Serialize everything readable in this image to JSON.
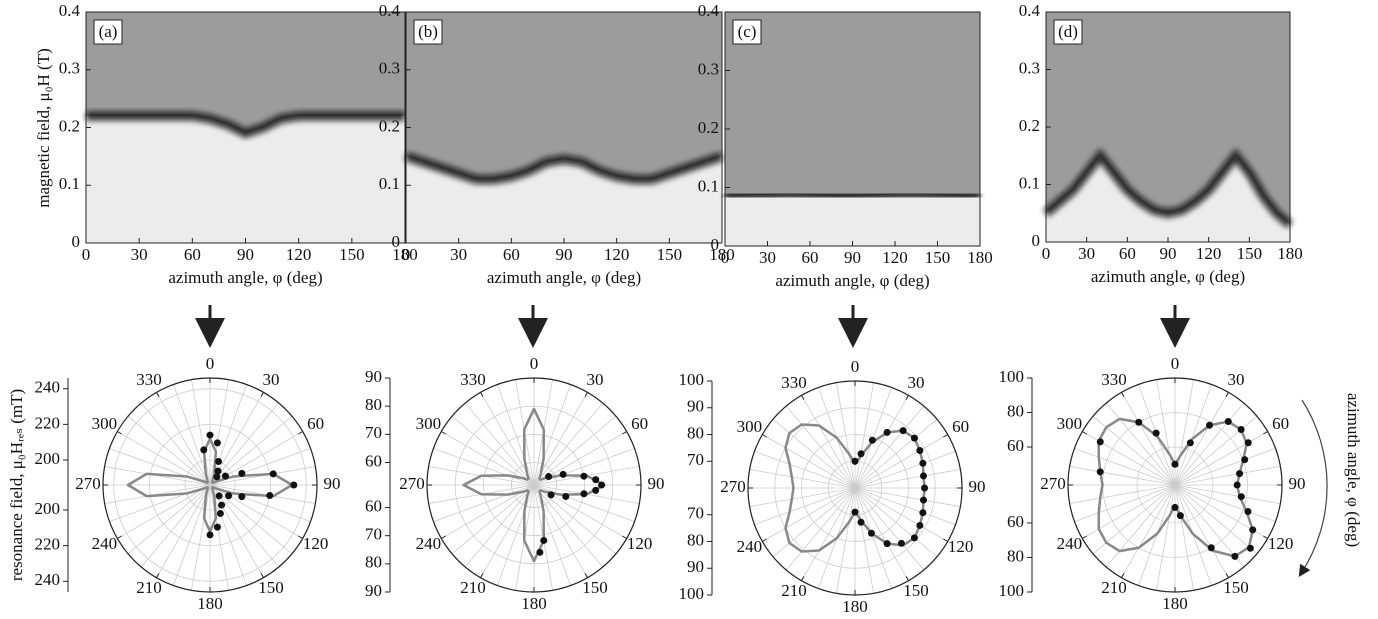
{
  "chart_data": [
    {
      "type": "heatmap",
      "label": "(a)",
      "xlabel": "azimuth angle, φ (deg)",
      "ylabel": "magnetic field, μ₀H (T)",
      "x": [
        0,
        10,
        20,
        30,
        40,
        50,
        60,
        70,
        80,
        90,
        100,
        110,
        120,
        130,
        140,
        150,
        160,
        170,
        180
      ],
      "values": [
        0.22,
        0.22,
        0.22,
        0.22,
        0.22,
        0.22,
        0.22,
        0.215,
        0.205,
        0.19,
        0.2,
        0.215,
        0.22,
        0.22,
        0.22,
        0.22,
        0.22,
        0.22,
        0.22
      ],
      "color": "#111111",
      "xlim": [
        0,
        180
      ],
      "xticks": [
        0,
        30,
        60,
        90,
        120,
        150,
        180
      ],
      "ylim": [
        0,
        0.4
      ],
      "yticks": [
        0,
        0.1,
        0.2,
        0.3,
        0.4
      ]
    },
    {
      "type": "heatmap",
      "label": "(b)",
      "xlabel": "azimuth angle, φ (deg)",
      "x": [
        0,
        10,
        20,
        30,
        40,
        50,
        60,
        70,
        80,
        90,
        100,
        110,
        120,
        130,
        140,
        150,
        160,
        170,
        180
      ],
      "values": [
        0.15,
        0.14,
        0.13,
        0.12,
        0.11,
        0.11,
        0.115,
        0.125,
        0.14,
        0.145,
        0.14,
        0.125,
        0.115,
        0.11,
        0.11,
        0.12,
        0.13,
        0.14,
        0.15
      ],
      "color": "#111111",
      "xlim": [
        0,
        180
      ],
      "xticks": [
        0,
        30,
        60,
        90,
        120,
        150,
        180
      ],
      "ylim": [
        0,
        0.4
      ],
      "yticks": [
        0,
        0.1,
        0.2,
        0.3,
        0.4
      ]
    },
    {
      "type": "heatmap",
      "label": "(c)",
      "xlabel": "azimuth angle, φ (deg)",
      "x": [
        0,
        10,
        20,
        30,
        40,
        50,
        60,
        70,
        80,
        90,
        100,
        110,
        120,
        130,
        140,
        150,
        160,
        170,
        180
      ],
      "values": [
        0.085,
        0.086,
        0.087,
        0.087,
        0.088,
        0.088,
        0.087,
        0.086,
        0.085,
        0.085,
        0.086,
        0.087,
        0.088,
        0.088,
        0.088,
        0.087,
        0.086,
        0.085,
        0.085
      ],
      "color": "#111111",
      "xlim": [
        0,
        180
      ],
      "xticks": [
        0,
        30,
        60,
        90,
        120,
        150,
        180
      ],
      "ylim": [
        0,
        0.4
      ],
      "yticks": [
        0,
        0.1,
        0.2,
        0.3,
        0.4
      ]
    },
    {
      "type": "heatmap",
      "label": "(d)",
      "xlabel": "azimuth angle, φ (deg)",
      "x": [
        0,
        10,
        20,
        30,
        40,
        50,
        60,
        70,
        80,
        90,
        100,
        110,
        120,
        130,
        140,
        150,
        160,
        170,
        180
      ],
      "values": [
        0.05,
        0.07,
        0.09,
        0.12,
        0.15,
        0.12,
        0.09,
        0.07,
        0.055,
        0.05,
        0.055,
        0.07,
        0.09,
        0.12,
        0.15,
        0.12,
        0.08,
        0.05,
        0.03
      ],
      "color": "#111111",
      "xlim": [
        0,
        180
      ],
      "xticks": [
        0,
        30,
        60,
        90,
        120,
        150,
        180
      ],
      "ylim": [
        0,
        0.4
      ],
      "yticks": [
        0,
        0.1,
        0.2,
        0.3,
        0.4
      ]
    },
    {
      "type": "polar",
      "ylabel": "resonance field, μ₀Hᵣₑₛ (mT)",
      "rlim": [
        186,
        246
      ],
      "rticks": [
        200,
        220,
        240
      ],
      "thetaticks": [
        0,
        30,
        60,
        90,
        120,
        150,
        180,
        210,
        240,
        270,
        300,
        330
      ],
      "fit": {
        "color": "#888888",
        "theta": [
          0,
          10,
          20,
          30,
          40,
          50,
          60,
          70,
          80,
          90,
          100,
          110,
          120,
          130,
          140,
          150,
          160,
          170,
          180,
          190,
          200,
          210,
          220,
          230,
          240,
          250,
          260,
          270,
          280,
          290,
          300,
          310,
          320,
          330,
          340,
          350
        ],
        "values": [
          212,
          205,
          193,
          189,
          188,
          188,
          190,
          200,
          222,
          232,
          222,
          200,
          190,
          188,
          188,
          189,
          193,
          205,
          212,
          205,
          193,
          189,
          188,
          188,
          190,
          200,
          222,
          232,
          222,
          200,
          190,
          188,
          188,
          189,
          193,
          205
        ]
      },
      "points": {
        "color": "#111111",
        "theta": [
          350,
          0,
          10,
          20,
          30,
          40,
          60,
          70,
          80,
          90,
          100,
          110,
          120,
          140,
          150,
          160,
          170,
          180
        ],
        "values": [
          206,
          214,
          210,
          200,
          195,
          192,
          196,
          205,
          222,
          233,
          220,
          205,
          198,
          194,
          199,
          203,
          210,
          214
        ]
      }
    },
    {
      "type": "polar",
      "rlim": [
        52,
        90
      ],
      "rticks": [
        60,
        70,
        80,
        90
      ],
      "thetaticks": [
        0,
        30,
        60,
        90,
        120,
        150,
        180,
        210,
        240,
        270,
        300,
        330
      ],
      "fit": {
        "color": "#888888",
        "theta": [
          0,
          10,
          20,
          30,
          40,
          50,
          60,
          70,
          80,
          90,
          100,
          110,
          120,
          130,
          140,
          150,
          160,
          170,
          180,
          190,
          200,
          210,
          220,
          230,
          240,
          250,
          260,
          270,
          280,
          290,
          300,
          310,
          320,
          330,
          340,
          350
        ],
        "values": [
          79,
          72,
          62,
          57,
          55,
          55,
          57,
          62,
          71,
          77,
          71,
          62,
          57,
          55,
          55,
          57,
          62,
          72,
          79,
          72,
          62,
          57,
          55,
          55,
          57,
          62,
          71,
          77,
          71,
          62,
          57,
          55,
          55,
          57,
          62,
          72
        ]
      },
      "points": {
        "color": "#111111",
        "theta": [
          60,
          70,
          80,
          85,
          90,
          95,
          100,
          110,
          120,
          170,
          175
        ],
        "values": [
          58,
          63,
          70,
          74,
          76,
          74,
          70,
          64,
          59,
          72,
          76
        ]
      }
    },
    {
      "type": "polar",
      "rlim": [
        60,
        100
      ],
      "rticks": [
        70,
        80,
        90,
        100
      ],
      "thetaticks": [
        0,
        30,
        60,
        90,
        120,
        150,
        180,
        210,
        240,
        270,
        300,
        330
      ],
      "fit": {
        "color": "#888888",
        "theta": [
          0,
          10,
          20,
          30,
          40,
          50,
          60,
          70,
          80,
          90,
          100,
          110,
          120,
          130,
          140,
          150,
          160,
          170,
          180,
          190,
          200,
          210,
          220,
          230,
          240,
          250,
          260,
          270,
          280,
          290,
          300,
          310,
          320,
          330,
          340,
          350
        ],
        "values": [
          69,
          72,
          78,
          84,
          88,
          89,
          88,
          87,
          86,
          86,
          86,
          87,
          88,
          89,
          88,
          84,
          78,
          72,
          69,
          73,
          80,
          87,
          91,
          92,
          90,
          86,
          84,
          83,
          84,
          86,
          90,
          92,
          91,
          87,
          80,
          73
        ]
      },
      "points": {
        "color": "#111111",
        "theta": [
          0,
          10,
          20,
          30,
          40,
          50,
          60,
          70,
          80,
          90,
          100,
          110,
          120,
          130,
          140,
          150,
          160,
          170,
          180
        ],
        "values": [
          70,
          73,
          79,
          84,
          88,
          89,
          88,
          87,
          86,
          86,
          86,
          87,
          88,
          89,
          87,
          84,
          78,
          73,
          69
        ]
      }
    },
    {
      "type": "polar",
      "thetalabel": "azimuth angle, φ (deg)",
      "rlim": [
        38,
        100
      ],
      "rticks": [
        60,
        80,
        100
      ],
      "thetaticks": [
        0,
        30,
        60,
        90,
        120,
        150,
        180,
        210,
        240,
        270,
        300,
        330
      ],
      "fit": {
        "color": "#888888",
        "theta": [
          0,
          10,
          20,
          30,
          40,
          50,
          60,
          70,
          80,
          90,
          100,
          110,
          120,
          130,
          140,
          150,
          160,
          170,
          180,
          190,
          200,
          210,
          220,
          230,
          240,
          250,
          260,
          270,
          280,
          290,
          300,
          310,
          320,
          330,
          340,
          350
        ],
        "values": [
          50,
          55,
          66,
          78,
          86,
          88,
          86,
          80,
          76,
          74,
          76,
          82,
          90,
          94,
          92,
          82,
          68,
          56,
          50,
          56,
          68,
          80,
          88,
          90,
          89,
          85,
          82,
          80,
          82,
          85,
          89,
          90,
          88,
          80,
          68,
          56
        ]
      },
      "points": {
        "color": "#111111",
        "theta": [
          0,
          20,
          30,
          40,
          50,
          60,
          70,
          80,
          90,
          100,
          110,
          120,
          130,
          140,
          150,
          170,
          180,
          280,
          300,
          330,
          340
        ],
        "values": [
          50,
          64,
          78,
          86,
          88,
          87,
          81,
          76,
          74,
          77,
          83,
          90,
          95,
          92,
          80,
          56,
          51,
          82,
          88,
          80,
          70
        ]
      }
    }
  ]
}
